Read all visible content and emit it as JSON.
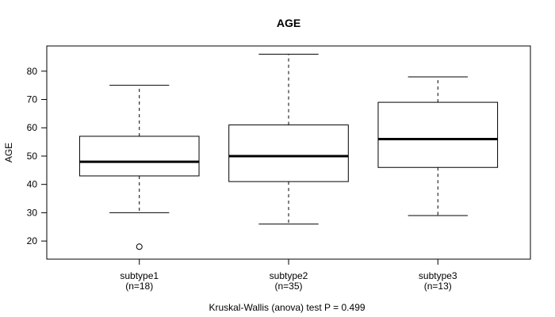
{
  "title": "AGE",
  "annotation": "Kruskal-Wallis (anova) test P = 0.499",
  "chart_data": {
    "type": "boxplot",
    "title": "AGE",
    "xlabel": "",
    "ylabel": "AGE",
    "ylim": [
      13.6,
      88.9
    ],
    "yticks": [
      20,
      30,
      40,
      50,
      60,
      70,
      80
    ],
    "grid": false,
    "legend": "none",
    "categories": [
      "subtype1",
      "subtype2",
      "subtype3"
    ],
    "category_sublabels": [
      "(n=18)",
      "(n=35)",
      "(n=13)"
    ],
    "series": [
      {
        "name": "subtype1",
        "n": 18,
        "whisker_low": 30,
        "q1": 43,
        "median": 48,
        "q3": 57,
        "whisker_high": 75,
        "outliers": [
          18
        ]
      },
      {
        "name": "subtype2",
        "n": 35,
        "whisker_low": 26,
        "q1": 41,
        "median": 50,
        "q3": 61,
        "whisker_high": 86,
        "outliers": []
      },
      {
        "name": "subtype3",
        "n": 13,
        "whisker_low": 29,
        "q1": 46,
        "median": 56,
        "q3": 69,
        "whisker_high": 78,
        "outliers": []
      }
    ],
    "annotation": "Kruskal-Wallis (anova) test P = 0.499",
    "colors": {
      "line": "#000000",
      "box_fill": "#ffffff",
      "background": "#ffffff",
      "text": "#000000"
    }
  }
}
